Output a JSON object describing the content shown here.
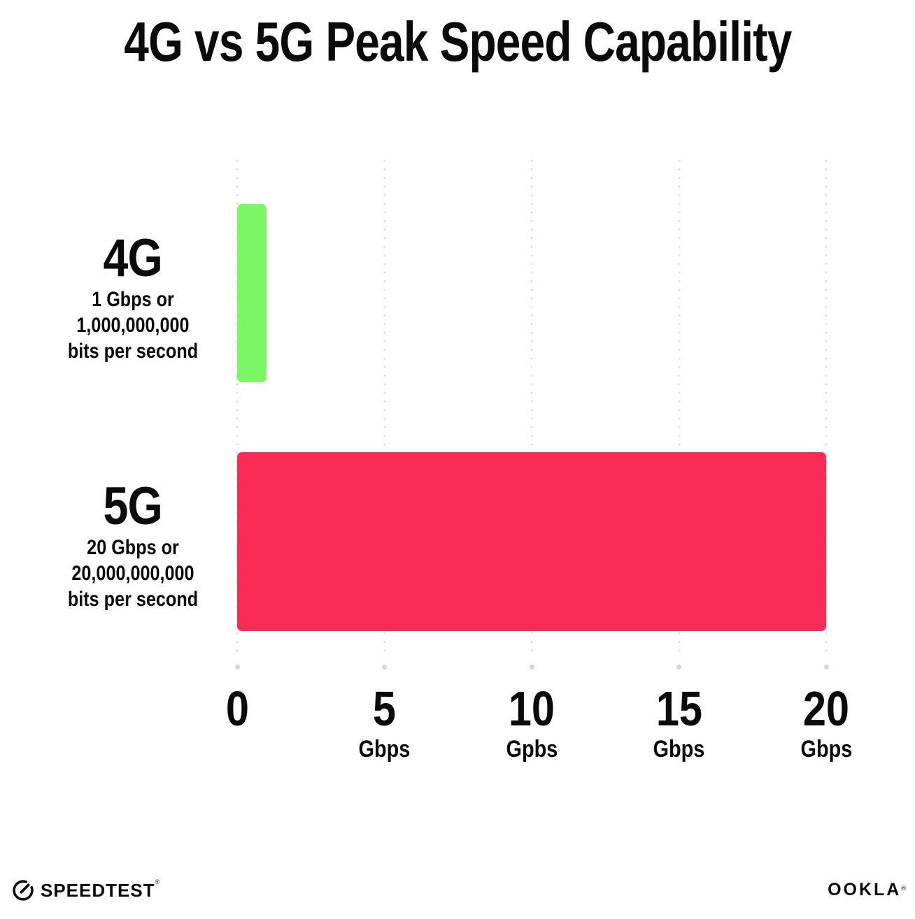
{
  "chart_data": {
    "type": "bar",
    "orientation": "horizontal",
    "title": "4G vs 5G Peak Speed Capability",
    "categories": [
      "4G",
      "5G"
    ],
    "values": [
      1,
      20
    ],
    "value_unit": "Gbps",
    "category_sublabels": [
      [
        "1 Gbps or",
        "1,000,000,000",
        "bits per second"
      ],
      [
        "20 Gbps or",
        "20,000,000,000",
        "bits per second"
      ]
    ],
    "bar_colors": [
      "#7CF763",
      "#FC2B55"
    ],
    "xlim": [
      0,
      20
    ],
    "xticks": [
      {
        "label": "0",
        "unit": ""
      },
      {
        "label": "5",
        "unit": "Gbps"
      },
      {
        "label": "10",
        "unit": "Gpbs"
      },
      {
        "label": "15",
        "unit": "Gbps"
      },
      {
        "label": "20",
        "unit": "Gbps"
      }
    ],
    "grid": "dotted-vertical",
    "gridline_color": "#DBDBE6",
    "legend": "none"
  },
  "footer": {
    "speedtest_label": "SPEEDTEST",
    "speedtest_mark": "®",
    "ookla_label": "OOKLA",
    "ookla_mark": "®"
  }
}
